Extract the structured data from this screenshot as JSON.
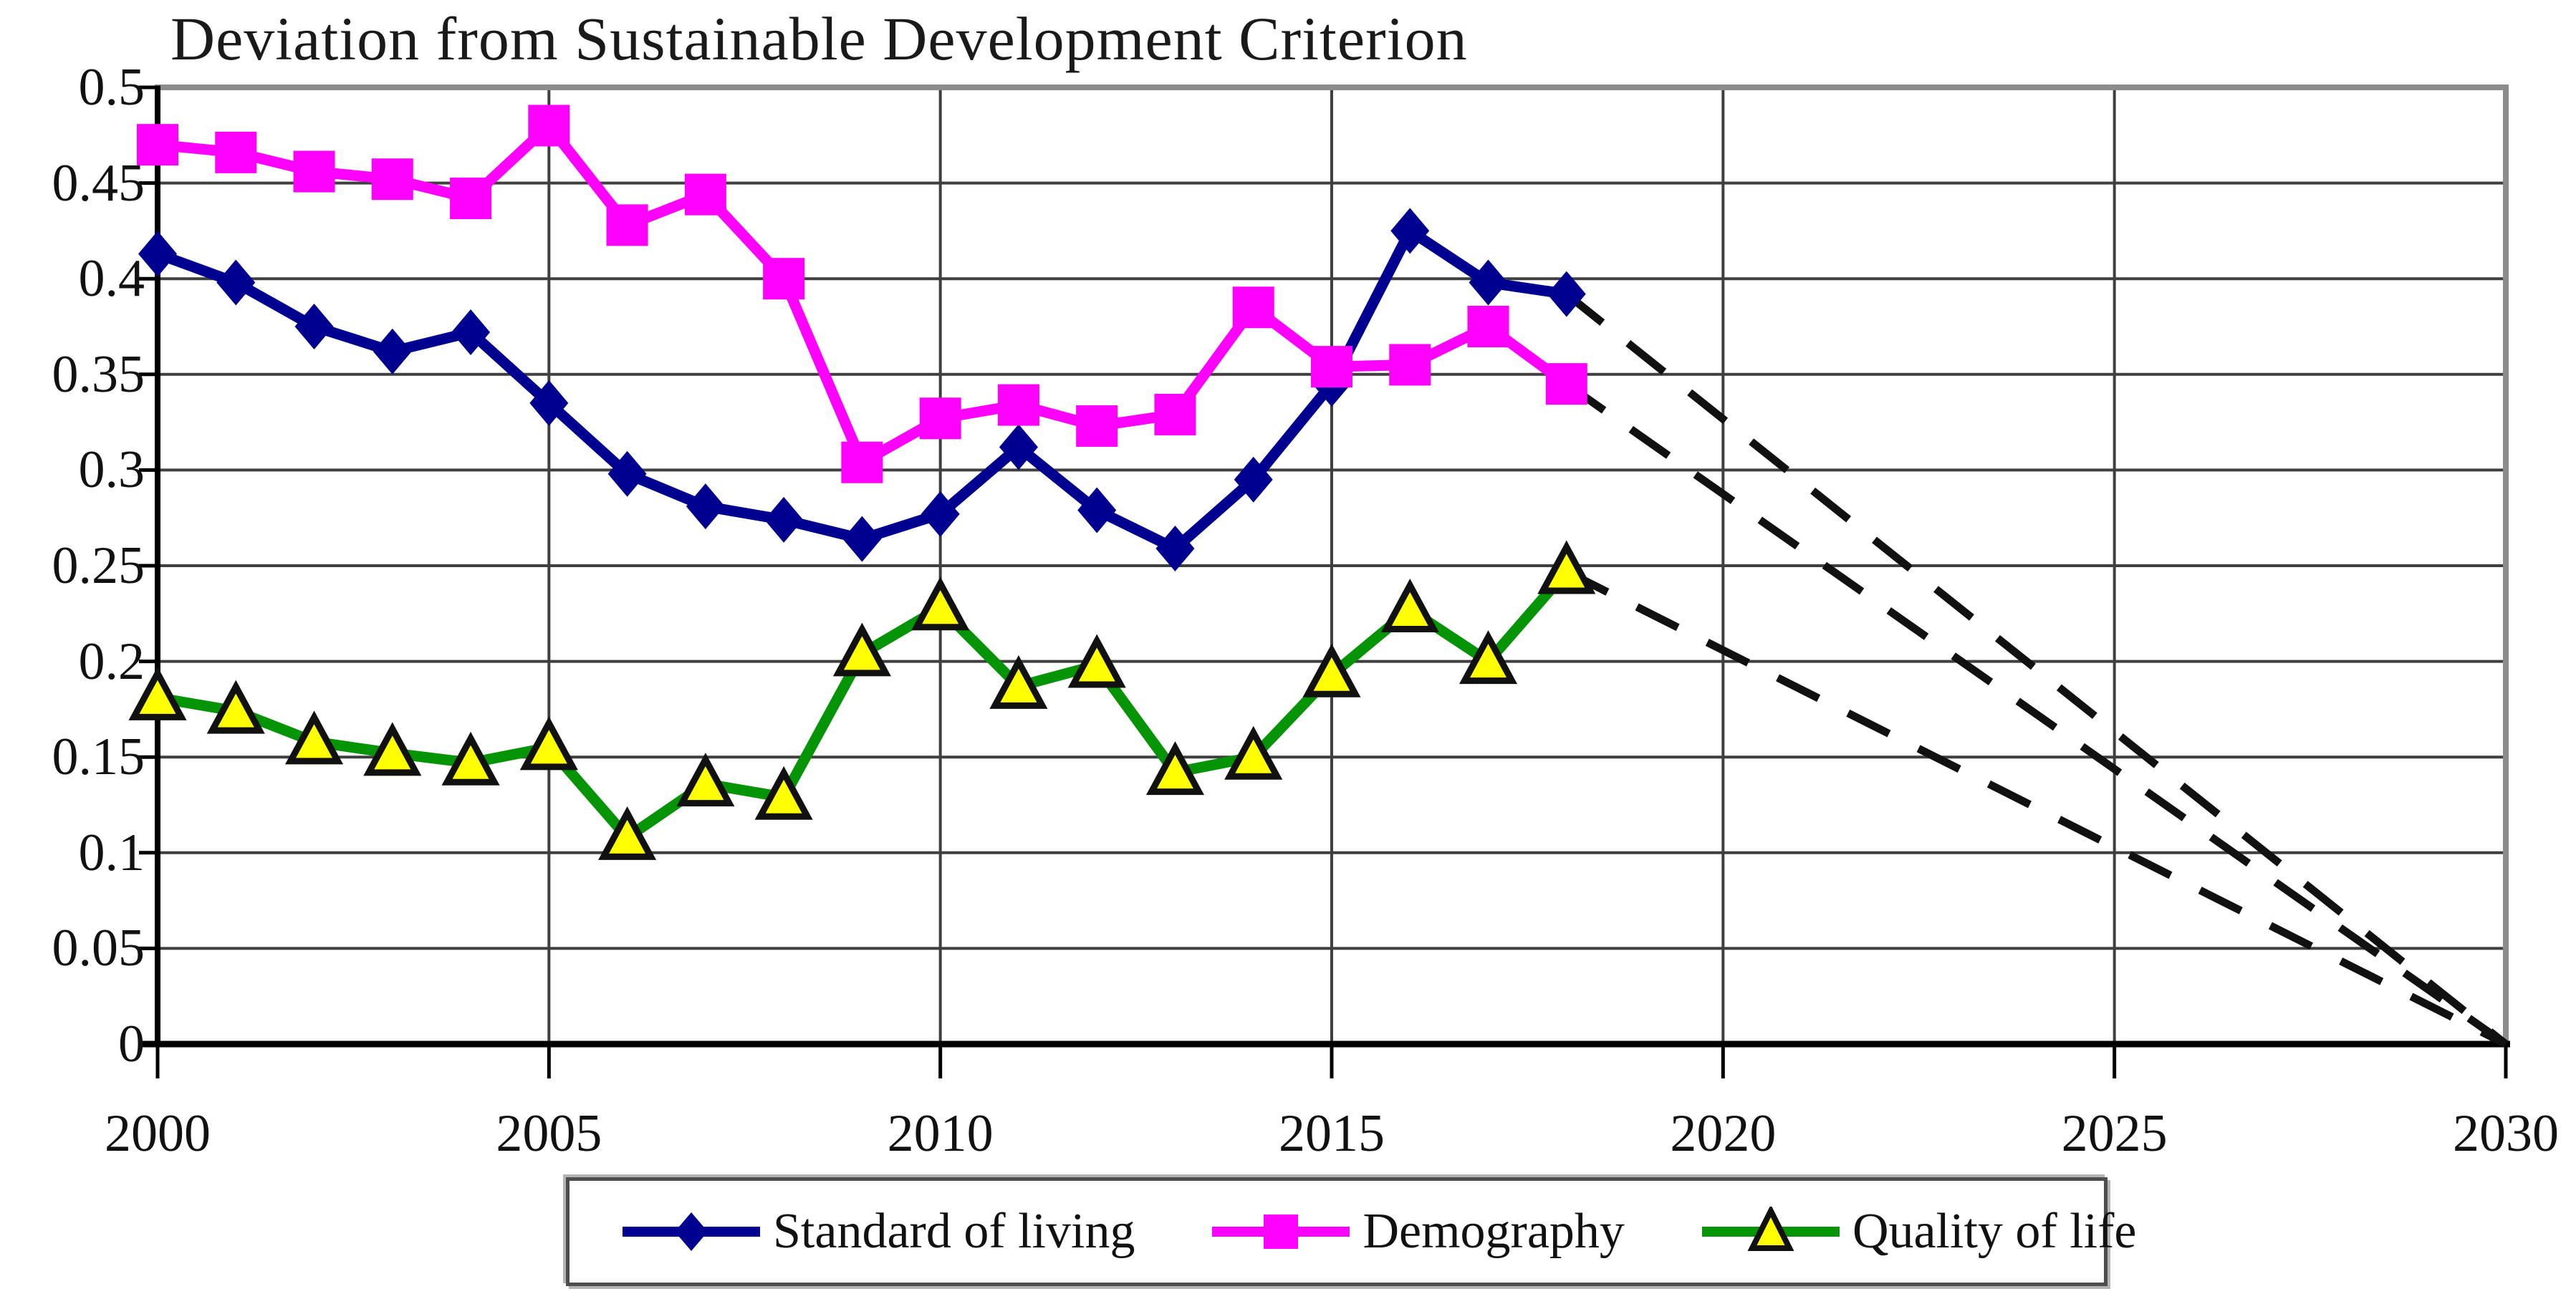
{
  "page": {
    "background": "#ffffff"
  },
  "chart_data": {
    "type": "line",
    "title": "Deviation from Sustainable Development Criterion",
    "xlabel": "",
    "ylabel": "",
    "xlim": [
      2000,
      2030
    ],
    "ylim": [
      0,
      0.5
    ],
    "grid": true,
    "grid_color": "#3f3f3f",
    "axis_color": "#000000",
    "border_color": "#8c8c8c",
    "projection_color": "#111111",
    "legend_position": "bottom",
    "x": [
      2000,
      2001,
      2002,
      2003,
      2004,
      2005,
      2006,
      2007,
      2008,
      2009,
      2010,
      2011,
      2012,
      2013,
      2014,
      2015,
      2016,
      2017,
      2018
    ],
    "xticks": [
      2000,
      2005,
      2010,
      2015,
      2020,
      2025,
      2030
    ],
    "xtick_labels": [
      "2000",
      "2005",
      "2010",
      "2015",
      "2020",
      "2025",
      "2030"
    ],
    "yticks": [
      0.5,
      0.45,
      0.4,
      0.35,
      0.3,
      0.25,
      0.2,
      0.15,
      0.1,
      0.05,
      0
    ],
    "ytick_labels": [
      "0.5",
      "0.45",
      "0.4",
      "0.35",
      "0.3",
      "0.25",
      "0.2",
      "0.15",
      "0.1",
      "0.05",
      "0"
    ],
    "series": [
      {
        "name": "Standard of living",
        "color": "#000090",
        "marker": "diamond",
        "marker_fill": "#000090",
        "values": [
          0.413,
          0.398,
          0.375,
          0.362,
          0.372,
          0.335,
          0.298,
          0.281,
          0.274,
          0.264,
          0.277,
          0.312,
          0.279,
          0.259,
          0.295,
          0.345,
          0.425,
          0.398,
          0.392
        ]
      },
      {
        "name": "Demography",
        "color": "#FF00FF",
        "marker": "square",
        "marker_fill": "#FF00FF",
        "values": [
          0.47,
          0.466,
          0.456,
          0.452,
          0.442,
          0.48,
          0.428,
          0.444,
          0.4,
          0.304,
          0.327,
          0.334,
          0.323,
          0.329,
          0.385,
          0.354,
          0.355,
          0.375,
          0.345
        ]
      },
      {
        "name": "Quality of life",
        "color": "#059405",
        "marker": "triangle",
        "marker_fill": "#FFFF00",
        "marker_stroke": "#111111",
        "values": [
          0.181,
          0.174,
          0.158,
          0.152,
          0.147,
          0.155,
          0.108,
          0.136,
          0.129,
          0.204,
          0.228,
          0.187,
          0.198,
          0.142,
          0.15,
          0.193,
          0.227,
          0.2,
          0.247
        ]
      }
    ],
    "projections": [
      {
        "from_series": "Standard of living",
        "from_x": 2018,
        "to_x": 2030,
        "to_y": 0
      },
      {
        "from_series": "Demography",
        "from_x": 2018,
        "to_x": 2030,
        "to_y": 0
      },
      {
        "from_series": "Quality of life",
        "from_x": 2018,
        "to_x": 2030,
        "to_y": 0
      }
    ]
  },
  "legend": {
    "items": [
      {
        "label": "Standard of living"
      },
      {
        "label": "Demography"
      },
      {
        "label": "Quality of life"
      }
    ]
  }
}
